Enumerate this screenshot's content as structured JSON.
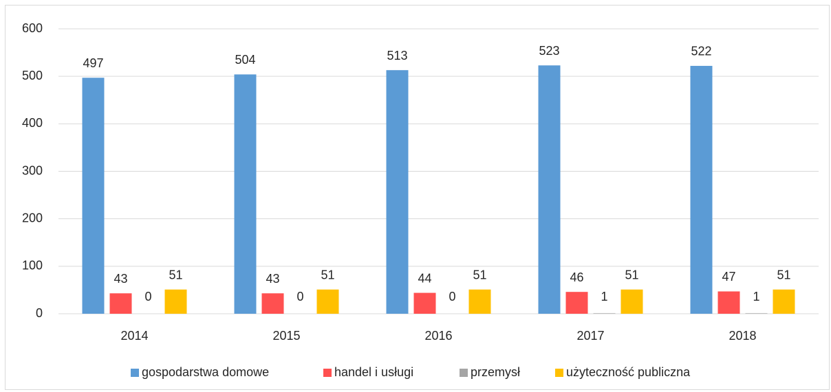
{
  "chart_data": {
    "type": "bar",
    "categories": [
      "2014",
      "2015",
      "2016",
      "2017",
      "2018"
    ],
    "series": [
      {
        "name": "gospodarstwa domowe",
        "color": "#5b9bd5",
        "values": [
          497,
          504,
          513,
          523,
          522
        ]
      },
      {
        "name": "handel i usługi",
        "color": "#ff5050",
        "values": [
          43,
          43,
          44,
          46,
          47
        ]
      },
      {
        "name": "przemysł",
        "color": "#a5a5a5",
        "values": [
          0,
          0,
          0,
          1,
          1
        ]
      },
      {
        "name": "użyteczność publiczna",
        "color": "#ffc000",
        "values": [
          51,
          51,
          51,
          51,
          51
        ]
      }
    ],
    "ylim": [
      0,
      600
    ],
    "yticks": [
      0,
      100,
      200,
      300,
      400,
      500,
      600
    ],
    "grid": true,
    "legend": "bottom"
  }
}
